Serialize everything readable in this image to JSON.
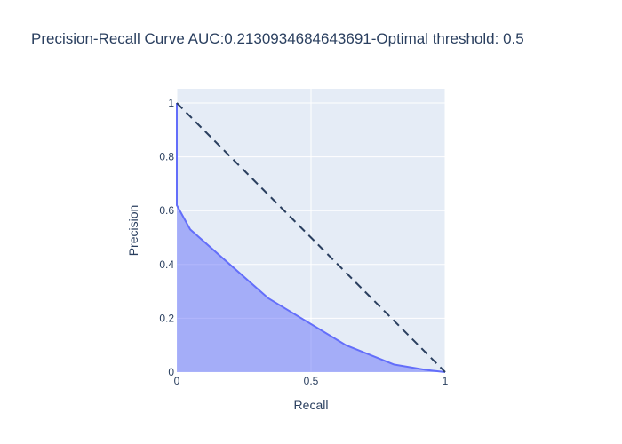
{
  "chart_data": {
    "type": "area",
    "title": "Precision-Recall Curve AUC:0.2130934684643691-Optimal threshold: 0.5",
    "xlabel": "Recall",
    "ylabel": "Precision",
    "xlim": [
      0,
      1
    ],
    "ylim": [
      0,
      1
    ],
    "x_ticks": [
      {
        "value": 0,
        "label": "0"
      },
      {
        "value": 0.5,
        "label": "0.5"
      },
      {
        "value": 1,
        "label": "1"
      }
    ],
    "y_ticks": [
      {
        "value": 0,
        "label": "0"
      },
      {
        "value": 0.2,
        "label": "0.2"
      },
      {
        "value": 0.4,
        "label": "0.4"
      },
      {
        "value": 0.6,
        "label": "0.6"
      },
      {
        "value": 0.8,
        "label": "0.8"
      },
      {
        "value": 1,
        "label": "1"
      }
    ],
    "grid": true,
    "series": [
      {
        "kind": "area",
        "color": "#636efa",
        "fill_color": "rgba(99,110,250,0.5)",
        "x": [
          0,
          0,
          0.05,
          0.34,
          0.63,
          0.81,
          0.93,
          1.0
        ],
        "y": [
          1.0,
          0.62,
          0.53,
          0.275,
          0.1,
          0.028,
          0.008,
          0.0
        ]
      },
      {
        "kind": "reference-line",
        "color": "#2a3f5f",
        "dash": "dash",
        "x": [
          0,
          1
        ],
        "y": [
          1,
          0
        ]
      }
    ],
    "colors": {
      "plot_background": "#e5ecf6",
      "grid": "#ffffff",
      "text": "#2a3f5f"
    }
  }
}
